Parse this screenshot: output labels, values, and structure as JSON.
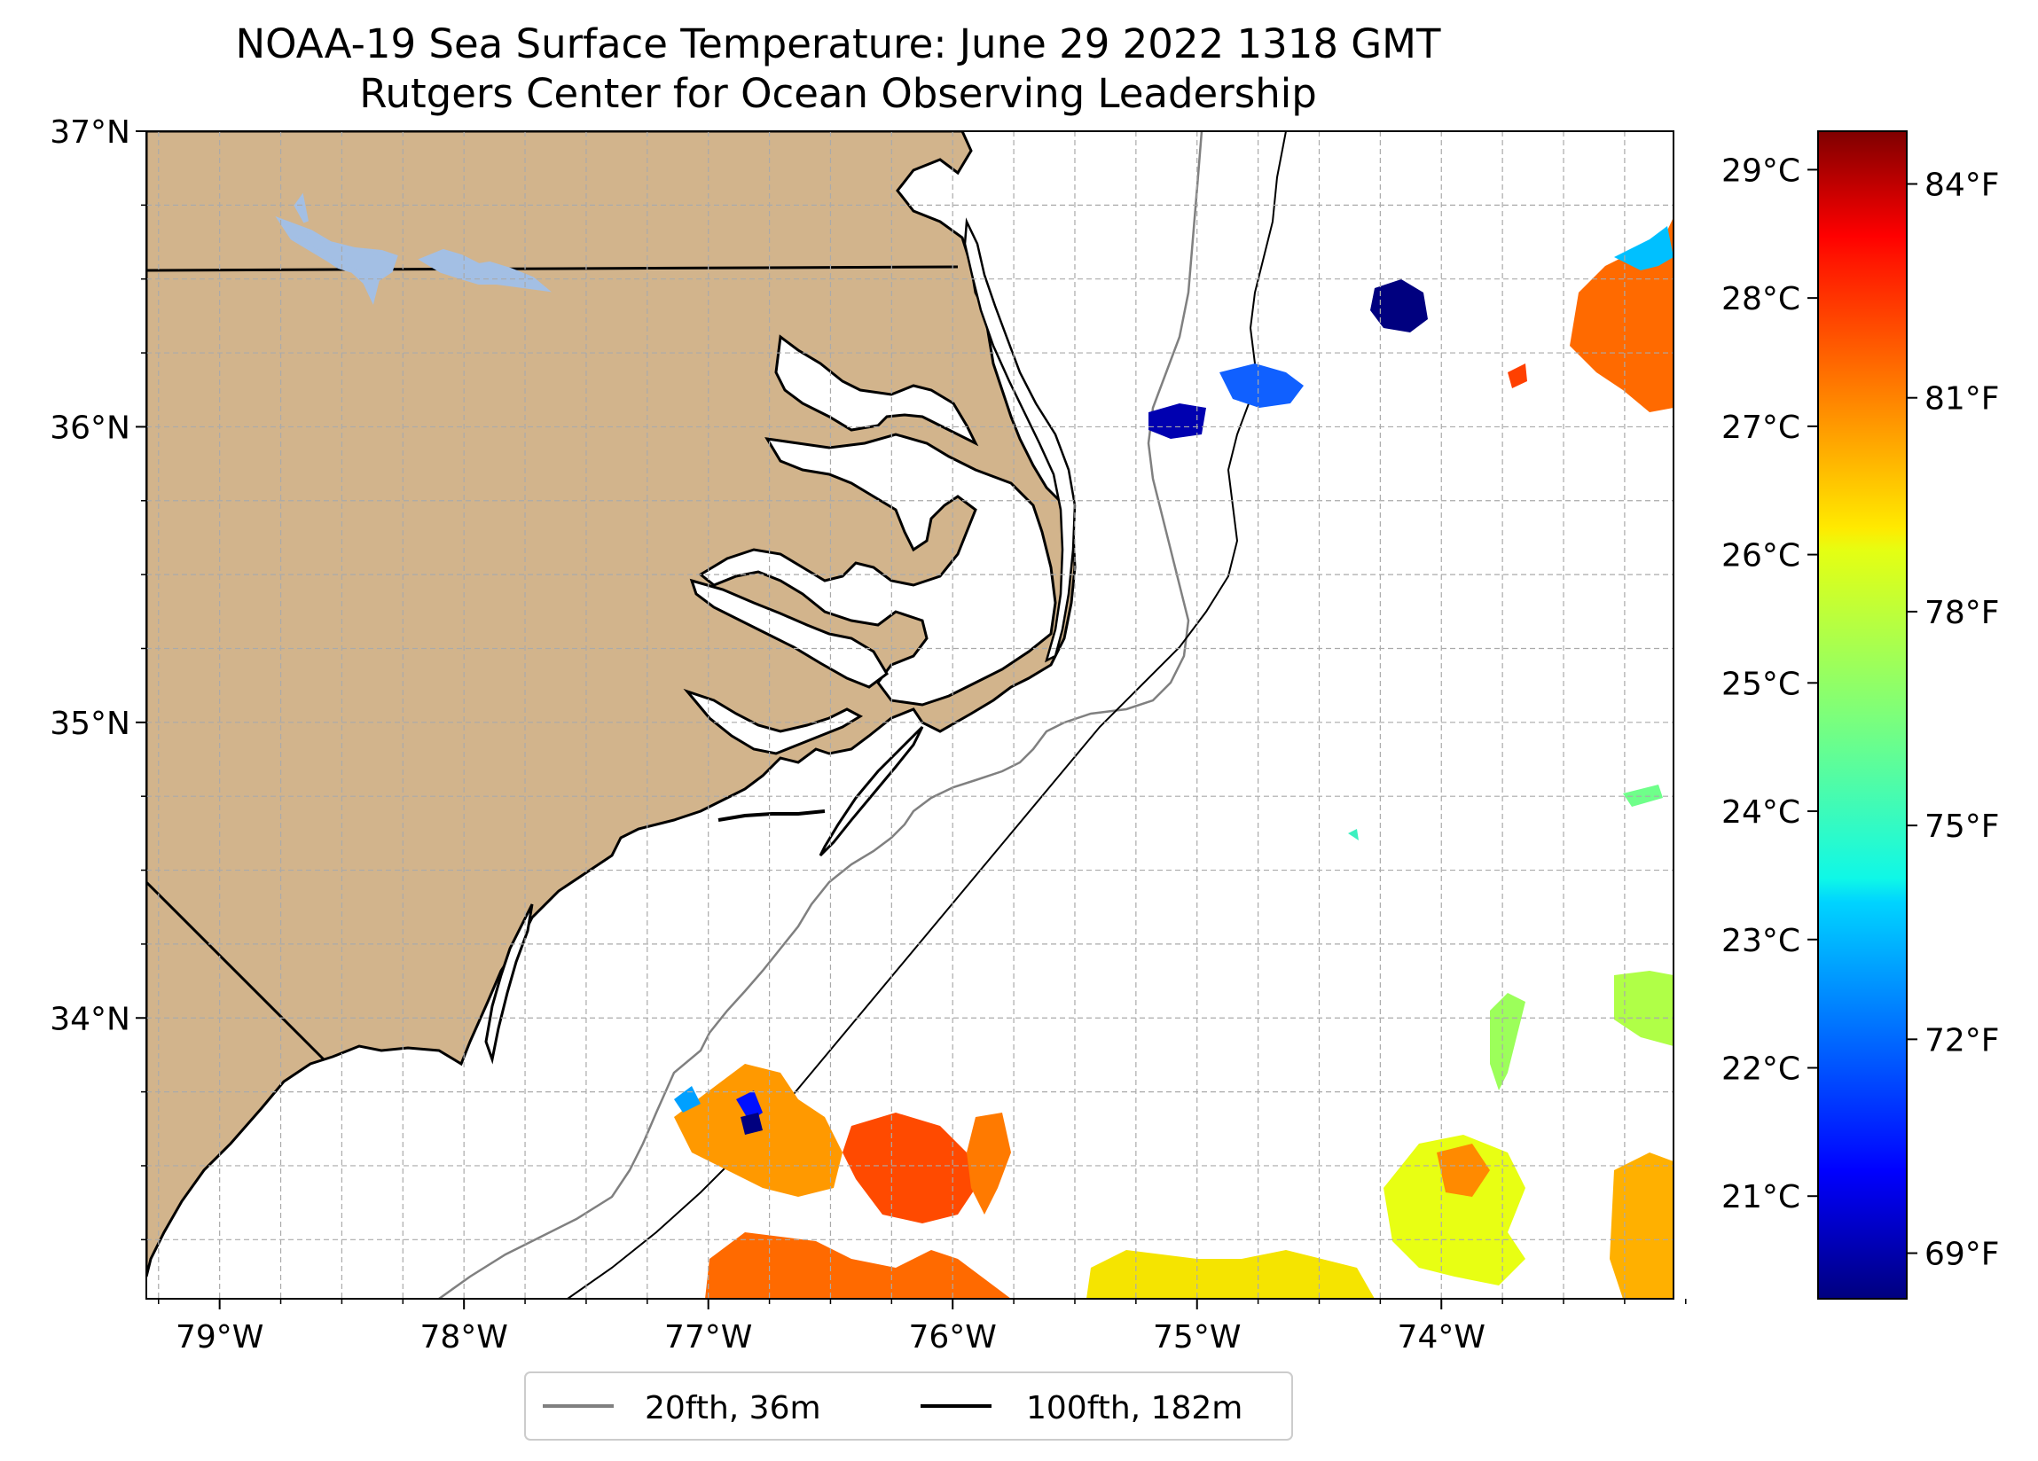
{
  "title": {
    "line1": "NOAA-19 Sea Surface Temperature: June 29 2022 1318 GMT",
    "line2": "Rutgers Center for Ocean Observing Leadership"
  },
  "map": {
    "lon_range": [
      -79.3,
      -73.05
    ],
    "lat_range": [
      33.05,
      37.0
    ],
    "lon_ticks": [
      {
        "value": -79,
        "label": "79°W"
      },
      {
        "value": -78,
        "label": "78°W"
      },
      {
        "value": -77,
        "label": "77°W"
      },
      {
        "value": -76,
        "label": "76°W"
      },
      {
        "value": -75,
        "label": "75°W"
      },
      {
        "value": -74,
        "label": "74°W"
      }
    ],
    "lat_ticks": [
      {
        "value": 37,
        "label": "37°N"
      },
      {
        "value": 36,
        "label": "36°N"
      },
      {
        "value": 35,
        "label": "35°N"
      },
      {
        "value": 34,
        "label": "34°N"
      }
    ],
    "grid": true,
    "land_color": "#d2b48c",
    "lake_color": "#a3bfe4",
    "contour_20fth_color": "#808080",
    "contour_100fth_color": "#000000"
  },
  "legend": {
    "placement": "bottom-center",
    "entries": [
      {
        "label": "20fth, 36m",
        "color": "#808080"
      },
      {
        "label": "100fth, 182m",
        "color": "#000000"
      }
    ]
  },
  "colorbar": {
    "colormap": "jet",
    "celsius_range": [
      20.2,
      29.3
    ],
    "celsius_ticks": [
      {
        "value": 29,
        "label": "29°C"
      },
      {
        "value": 28,
        "label": "28°C"
      },
      {
        "value": 27,
        "label": "27°C"
      },
      {
        "value": 26,
        "label": "26°C"
      },
      {
        "value": 25,
        "label": "25°C"
      },
      {
        "value": 24,
        "label": "24°C"
      },
      {
        "value": 23,
        "label": "23°C"
      },
      {
        "value": 22,
        "label": "22°C"
      },
      {
        "value": 21,
        "label": "21°C"
      }
    ],
    "fahrenheit_ticks": [
      {
        "value": 84,
        "label": "84°F"
      },
      {
        "value": 81,
        "label": "81°F"
      },
      {
        "value": 78,
        "label": "78°F"
      },
      {
        "value": 75,
        "label": "75°F"
      },
      {
        "value": 72,
        "label": "72°F"
      },
      {
        "value": 69,
        "label": "69°F"
      }
    ]
  }
}
